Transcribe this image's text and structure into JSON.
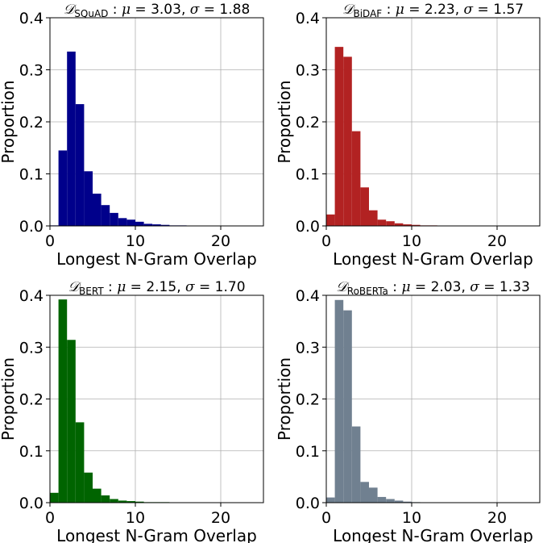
{
  "chart_data": [
    {
      "type": "bar",
      "title": {
        "symbol": "𝒟",
        "subscript": "SQuAD",
        "mu_label": "μ",
        "mu": "3.03",
        "sigma_label": "σ",
        "sigma": "1.88"
      },
      "xlabel": "Longest N-Gram Overlap",
      "ylabel": "Proportion",
      "xlim": [
        0,
        25
      ],
      "ylim": [
        0,
        0.4
      ],
      "xticks": [
        "0",
        "10",
        "20"
      ],
      "yticks": [
        "0.0",
        "0.1",
        "0.2",
        "0.3",
        "0.4"
      ],
      "grid": true,
      "color": "#00008b",
      "bin_width": 1,
      "x": [
        0,
        1,
        2,
        3,
        4,
        5,
        6,
        7,
        8,
        9,
        10,
        11,
        12,
        13,
        14,
        15,
        16,
        17,
        18,
        19,
        20,
        21,
        22,
        23,
        24
      ],
      "values": [
        0.001,
        0.145,
        0.335,
        0.234,
        0.105,
        0.062,
        0.04,
        0.025,
        0.015,
        0.012,
        0.008,
        0.004,
        0.003,
        0.002,
        0.001,
        0.001,
        0.0005,
        0.0003,
        0.0002,
        0.0001,
        0.0001,
        0.0001,
        0.0001,
        0,
        0
      ]
    },
    {
      "type": "bar",
      "title": {
        "symbol": "𝒟",
        "subscript": "BiDAF",
        "mu_label": "μ",
        "mu": "2.23",
        "sigma_label": "σ",
        "sigma": "1.57"
      },
      "xlabel": "Longest N-Gram Overlap",
      "ylabel": "Proportion",
      "xlim": [
        0,
        25
      ],
      "ylim": [
        0,
        0.4
      ],
      "xticks": [
        "0",
        "10",
        "20"
      ],
      "yticks": [
        "0.0",
        "0.1",
        "0.2",
        "0.3",
        "0.4"
      ],
      "grid": true,
      "color": "#b22222",
      "bin_width": 1,
      "x": [
        0,
        1,
        2,
        3,
        4,
        5,
        6,
        7,
        8,
        9,
        10,
        11,
        12,
        13,
        14,
        15,
        16,
        17,
        18,
        19,
        20,
        21,
        22,
        23,
        24
      ],
      "values": [
        0.022,
        0.344,
        0.325,
        0.182,
        0.074,
        0.03,
        0.012,
        0.009,
        0.005,
        0.003,
        0.002,
        0.001,
        0.001,
        0.0005,
        0.0003,
        0.0002,
        0.0001,
        0.0001,
        0.0001,
        0,
        0,
        0,
        0,
        0,
        0
      ]
    },
    {
      "type": "bar",
      "title": {
        "symbol": "𝒟",
        "subscript": "BERT",
        "mu_label": "μ",
        "mu": "2.15",
        "sigma_label": "σ",
        "sigma": "1.70"
      },
      "xlabel": "Longest N-Gram Overlap",
      "ylabel": "Proportion",
      "xlim": [
        0,
        25
      ],
      "ylim": [
        0,
        0.4
      ],
      "xticks": [
        "0",
        "10",
        "20"
      ],
      "yticks": [
        "0.0",
        "0.1",
        "0.2",
        "0.3",
        "0.4"
      ],
      "grid": true,
      "color": "#006400",
      "bin_width": 1,
      "x": [
        0,
        1,
        2,
        3,
        4,
        5,
        6,
        7,
        8,
        9,
        10,
        11,
        12,
        13,
        14,
        15,
        16,
        17,
        18,
        19,
        20,
        21,
        22,
        23,
        24
      ],
      "values": [
        0.019,
        0.392,
        0.314,
        0.155,
        0.058,
        0.027,
        0.014,
        0.007,
        0.004,
        0.003,
        0.002,
        0.001,
        0.001,
        0.001,
        0.0005,
        0.0003,
        0.0002,
        0.0001,
        0.0001,
        0.0001,
        0.0001,
        0.0001,
        0.0001,
        0,
        0
      ]
    },
    {
      "type": "bar",
      "title": {
        "symbol": "𝒟",
        "subscript": "RoBERTa",
        "mu_label": "μ",
        "mu": "2.03",
        "sigma_label": "σ",
        "sigma": "1.33"
      },
      "xlabel": "Longest N-Gram Overlap",
      "ylabel": "Proportion",
      "xlim": [
        0,
        25
      ],
      "ylim": [
        0,
        0.4
      ],
      "xticks": [
        "0",
        "10",
        "20"
      ],
      "yticks": [
        "0.0",
        "0.1",
        "0.2",
        "0.3",
        "0.4"
      ],
      "grid": true,
      "color": "#708090",
      "bin_width": 1,
      "x": [
        0,
        1,
        2,
        3,
        4,
        5,
        6,
        7,
        8,
        9,
        10,
        11,
        12,
        13,
        14,
        15,
        16,
        17,
        18,
        19,
        20,
        21,
        22,
        23,
        24
      ],
      "values": [
        0.01,
        0.391,
        0.371,
        0.147,
        0.04,
        0.029,
        0.011,
        0.007,
        0.004,
        0.002,
        0.001,
        0.0005,
        0.0003,
        0.0002,
        0.0001,
        0.0001,
        0,
        0,
        0,
        0,
        0,
        0,
        0,
        0,
        0
      ]
    }
  ]
}
